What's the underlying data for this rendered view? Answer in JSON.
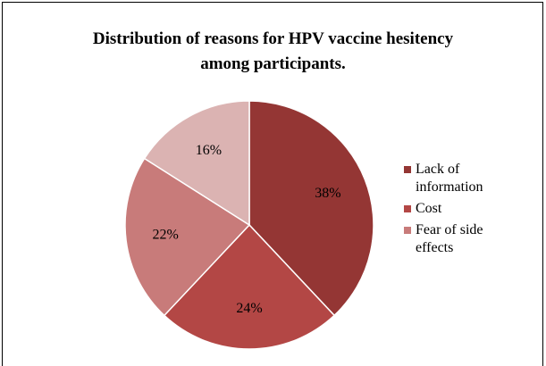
{
  "chart_data": {
    "type": "pie",
    "title": "Distribution of reasons for HPV vaccine hesitency among participants.",
    "categories": [
      "Lack of information",
      "Cost",
      "Fear of side effects",
      null
    ],
    "values": [
      38,
      24,
      22,
      16
    ],
    "value_labels": [
      "38%",
      "24%",
      "22%",
      "16%"
    ],
    "colors": [
      "#943634",
      "#b34745",
      "#c87b7a",
      "#dbb3b2"
    ],
    "legend": "right"
  }
}
